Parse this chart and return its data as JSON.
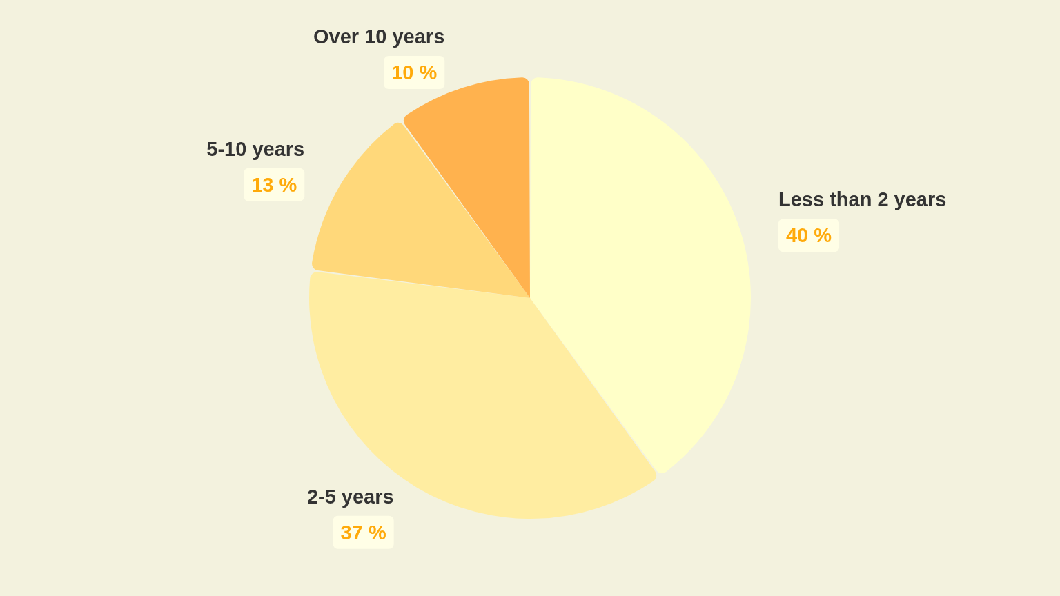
{
  "chart_data": {
    "type": "pie",
    "categories": [
      "Less than 2 years",
      "2-5 years",
      "5-10 years",
      "Over 10 years"
    ],
    "values": [
      40,
      37,
      13,
      10
    ],
    "colors": [
      "#ffffc8",
      "#ffeda1",
      "#ffd87a",
      "#ffb24e"
    ],
    "value_labels": [
      "40 %",
      "37 %",
      "13 %",
      "10 %"
    ]
  }
}
